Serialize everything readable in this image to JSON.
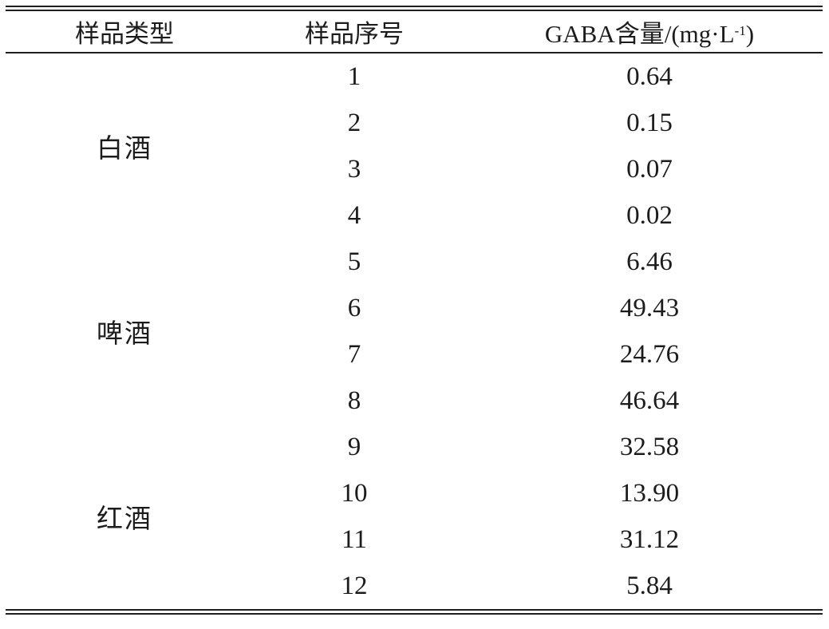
{
  "table": {
    "columns": [
      "样品类型",
      "样品序号",
      "GABA含量/(mg·L⁻¹)"
    ],
    "header": {
      "sample_type": "样品类型",
      "sample_no": "样品序号",
      "gaba_pre": "GABA含量/(mg·L",
      "gaba_sup": "-1",
      "gaba_post": ")"
    },
    "groups": [
      {
        "type": "白酒",
        "samples": [
          {
            "no": "1",
            "value": "0.64"
          },
          {
            "no": "2",
            "value": "0.15"
          },
          {
            "no": "3",
            "value": "0.07"
          },
          {
            "no": "4",
            "value": "0.02"
          }
        ]
      },
      {
        "type": "啤酒",
        "samples": [
          {
            "no": "5",
            "value": "6.46"
          },
          {
            "no": "6",
            "value": "49.43"
          },
          {
            "no": "7",
            "value": "24.76"
          },
          {
            "no": "8",
            "value": "46.64"
          }
        ]
      },
      {
        "type": "红酒",
        "samples": [
          {
            "no": "9",
            "value": "32.58"
          },
          {
            "no": "10",
            "value": "13.90"
          },
          {
            "no": "11",
            "value": "31.12"
          },
          {
            "no": "12",
            "value": "5.84"
          }
        ]
      }
    ]
  },
  "chart_data": {
    "type": "table",
    "title": "",
    "columns": [
      "样品类型",
      "样品序号",
      "GABA含量/(mg·L-1)"
    ],
    "rows": [
      [
        "白酒",
        1,
        0.64
      ],
      [
        "白酒",
        2,
        0.15
      ],
      [
        "白酒",
        3,
        0.07
      ],
      [
        "白酒",
        4,
        0.02
      ],
      [
        "啤酒",
        5,
        6.46
      ],
      [
        "啤酒",
        6,
        49.43
      ],
      [
        "啤酒",
        7,
        24.76
      ],
      [
        "啤酒",
        8,
        46.64
      ],
      [
        "红酒",
        9,
        32.58
      ],
      [
        "红酒",
        10,
        13.9
      ],
      [
        "红酒",
        11,
        31.12
      ],
      [
        "红酒",
        12,
        5.84
      ]
    ]
  },
  "colors": {
    "text": "#1c1c1c",
    "rule": "#1f1f1f",
    "background": "#ffffff"
  }
}
